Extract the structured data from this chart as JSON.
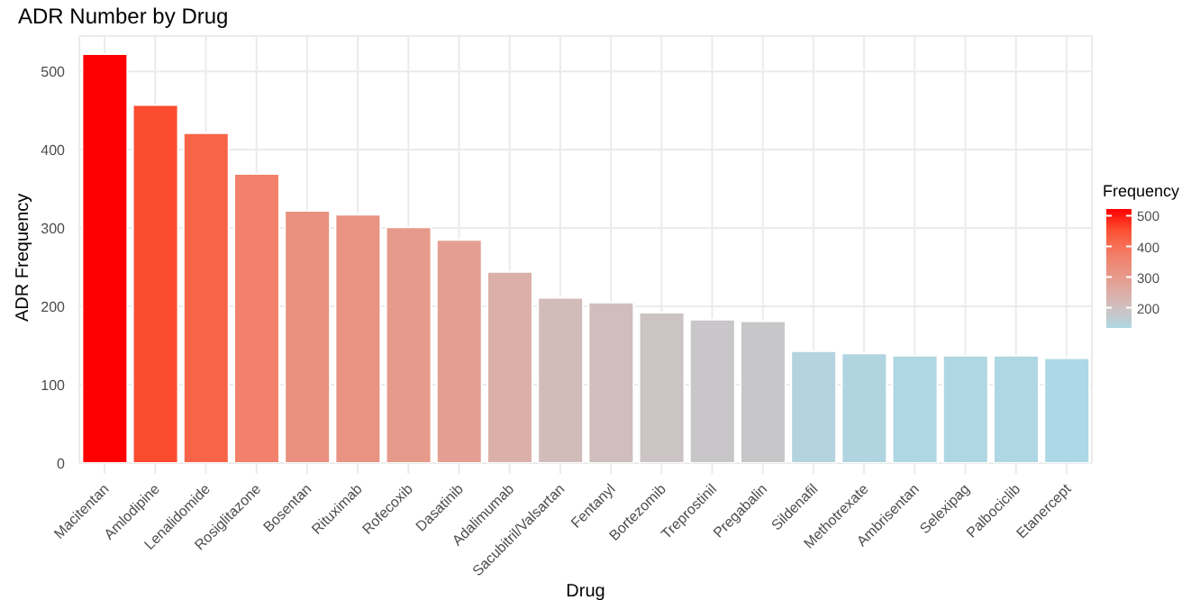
{
  "chart_data": {
    "type": "bar",
    "title": "ADR Number by Drug",
    "xlabel": "Drug",
    "ylabel": "ADR Frequency",
    "legend_title": "Frequency",
    "categories": [
      "Macitentan",
      "Amlodipine",
      "Lenalidomide",
      "Rosiglitazone",
      "Bosentan",
      "Rituximab",
      "Rofecoxib",
      "Dasatinib",
      "Adalimumab",
      "Sacubitril/Valsartan",
      "Fentanyl",
      "Bortezomib",
      "Treprostinil",
      "Pregabalin",
      "Sildenafil",
      "Methotrexate",
      "Ambrisentan",
      "Selexipag",
      "Palbociclib",
      "Etanercept"
    ],
    "values": [
      522,
      457,
      421,
      369,
      322,
      317,
      301,
      285,
      244,
      211,
      205,
      192,
      183,
      181,
      143,
      140,
      137,
      137,
      137,
      134
    ],
    "colors": [
      "#ff0000",
      "#fc4c30",
      "#f86448",
      "#f2806a",
      "#ea9180",
      "#e99383",
      "#e69a8b",
      "#e3a092",
      "#dab0a9",
      "#d2bcba",
      "#cfbebd",
      "#cbc3c4",
      "#c8c6c8",
      "#c7c7c9",
      "#b3d4de",
      "#b1d5e0",
      "#afd6e3",
      "#afd6e3",
      "#afd6e3",
      "#add8e6"
    ],
    "ylim": [
      0,
      545
    ],
    "yticks": [
      0,
      100,
      200,
      300,
      400,
      500
    ],
    "clim": [
      134,
      522
    ],
    "cticks": [
      200,
      300,
      400,
      500
    ],
    "grid": true
  }
}
